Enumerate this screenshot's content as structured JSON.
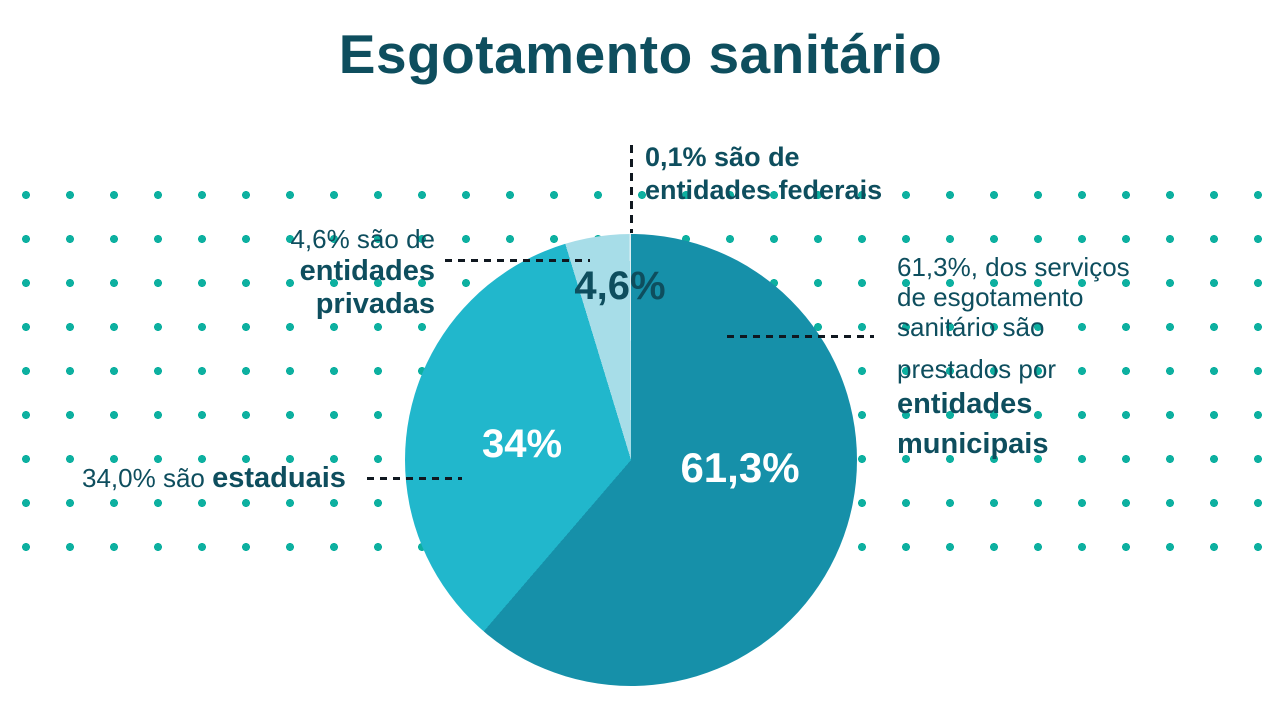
{
  "title": "Esgotamento sanitário",
  "colors": {
    "title_text": "#0e4e5e",
    "dots": "#0db0a0",
    "leader_line": "#101820",
    "pie_label_light": "#ffffff"
  },
  "chart_data": {
    "type": "pie",
    "title": "Esgotamento sanitário",
    "unit": "%",
    "start_angle_deg": 0,
    "direction": "clockwise",
    "slices": [
      {
        "label": "entidades municipais",
        "value": 61.3,
        "pie_label": "61,3%",
        "color": "#1690a9"
      },
      {
        "label": "estaduais",
        "value": 34.0,
        "pie_label": "34%",
        "color": "#21b7cc"
      },
      {
        "label": "entidades privadas",
        "value": 4.6,
        "pie_label": "4,6%",
        "color": "#a7dde8"
      },
      {
        "label": "entidades federais",
        "value": 0.1,
        "pie_label": "",
        "color": "#dcf0f5"
      }
    ]
  },
  "annotations": {
    "federal": {
      "line1": "0,1% são de",
      "line2": "entidades federais"
    },
    "privadas": {
      "line1": "4,6% são de",
      "line2": "entidades",
      "line3": "privadas"
    },
    "estaduais": {
      "prefix": "34,0% são ",
      "bold": "estaduais"
    },
    "municipais": {
      "line1": "61,3%, dos serviços",
      "line2": "de esgotamento",
      "line3": "sanitário são",
      "line4": "prestados por",
      "line5": "entidades",
      "line6": "municipais"
    }
  }
}
